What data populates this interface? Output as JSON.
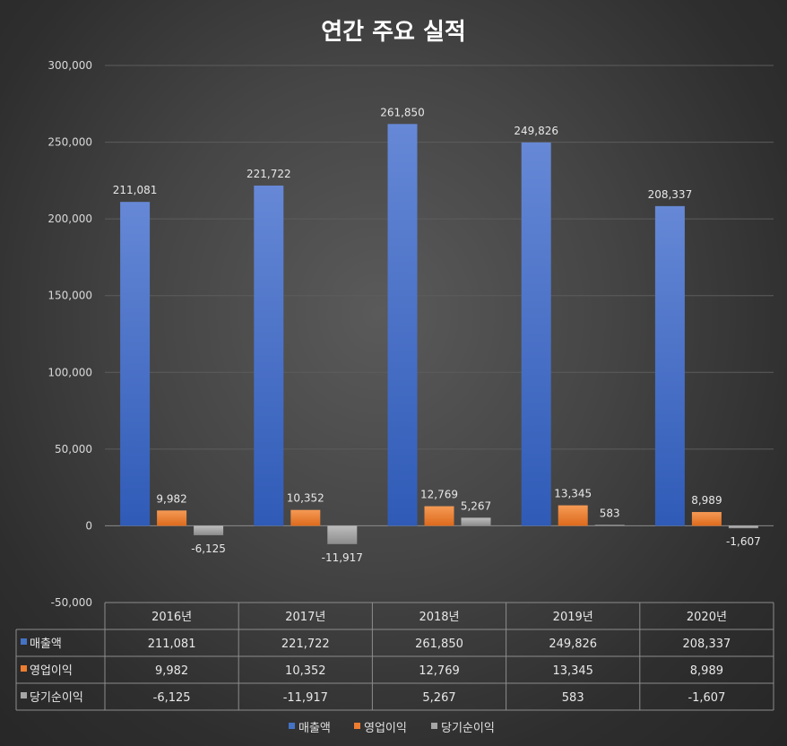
{
  "chart_data": {
    "type": "bar",
    "title": "연간 주요 실적",
    "categories": [
      "2016년",
      "2017년",
      "2018년",
      "2019년",
      "2020년"
    ],
    "series": [
      {
        "name": "매출액",
        "color": "#4472c4",
        "values": [
          211081,
          221722,
          261850,
          249826,
          208337
        ],
        "labels": [
          "211,081",
          "221,722",
          "261,850",
          "249,826",
          "208,337"
        ]
      },
      {
        "name": "영업이익",
        "color": "#ed7d31",
        "values": [
          9982,
          10352,
          12769,
          13345,
          8989
        ],
        "labels": [
          "9,982",
          "10,352",
          "12,769",
          "13,345",
          "8,989"
        ]
      },
      {
        "name": "당기순이익",
        "color": "#a5a5a5",
        "values": [
          -6125,
          -11917,
          5267,
          583,
          -1607
        ],
        "labels": [
          "-6,125",
          "-11,917",
          "5,267",
          "583",
          "-1,607"
        ]
      }
    ],
    "ylim": [
      -50000,
      300000
    ],
    "yticks": [
      -50000,
      0,
      50000,
      100000,
      150000,
      200000,
      250000,
      300000
    ],
    "ytick_labels": [
      "-50,000",
      "0",
      "50,000",
      "100,000",
      "150,000",
      "200,000",
      "250,000",
      "300,000"
    ],
    "grid": true,
    "legend": "bottom",
    "data_table": true
  }
}
